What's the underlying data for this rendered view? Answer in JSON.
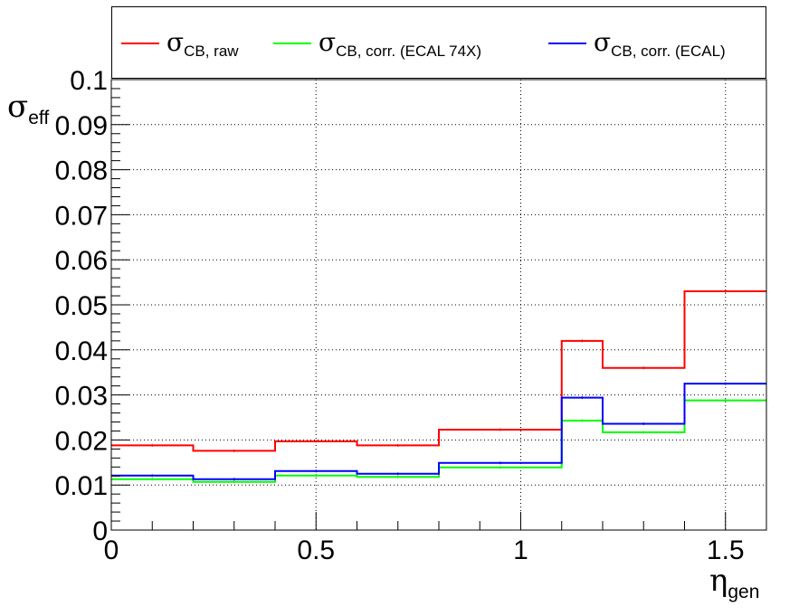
{
  "chart_data": {
    "type": "line",
    "step": true,
    "x_edges": [
      0,
      0.2,
      0.4,
      0.6,
      0.8,
      1.1,
      1.2,
      1.4,
      1.6
    ],
    "series": [
      {
        "name_symbol": "σ",
        "name_sub": "CB, raw",
        "color": "#ff0000",
        "values": [
          0.0188,
          0.0176,
          0.0197,
          0.0188,
          0.0223,
          0.042,
          0.036,
          0.053
        ]
      },
      {
        "name_symbol": "σ",
        "name_sub": "CB, corr. (ECAL 74X)",
        "color": "#00ff00",
        "values": [
          0.0113,
          0.0107,
          0.0121,
          0.0118,
          0.0139,
          0.0243,
          0.0217,
          0.0288
        ]
      },
      {
        "name_symbol": "σ",
        "name_sub": "CB, corr. (ECAL)",
        "color": "#0000ff",
        "values": [
          0.0121,
          0.0113,
          0.0131,
          0.0125,
          0.0149,
          0.0294,
          0.0236,
          0.0325
        ]
      }
    ],
    "xlim": [
      0,
      1.6
    ],
    "ylim": [
      0,
      0.1
    ],
    "x_ticks": [
      "0",
      "0.5",
      "1",
      "1.5"
    ],
    "x_tick_values": [
      0,
      0.5,
      1,
      1.5
    ],
    "y_ticks": [
      "0",
      "0.01",
      "0.02",
      "0.03",
      "0.04",
      "0.05",
      "0.06",
      "0.07",
      "0.08",
      "0.09",
      "0.1"
    ],
    "y_tick_values": [
      0,
      0.01,
      0.02,
      0.03,
      0.04,
      0.05,
      0.06,
      0.07,
      0.08,
      0.09,
      0.1
    ],
    "xlabel_symbol": "η",
    "xlabel_sub": "gen",
    "ylabel_symbol": "σ",
    "ylabel_sub": "eff",
    "grid": true,
    "legend_placement": "top"
  }
}
